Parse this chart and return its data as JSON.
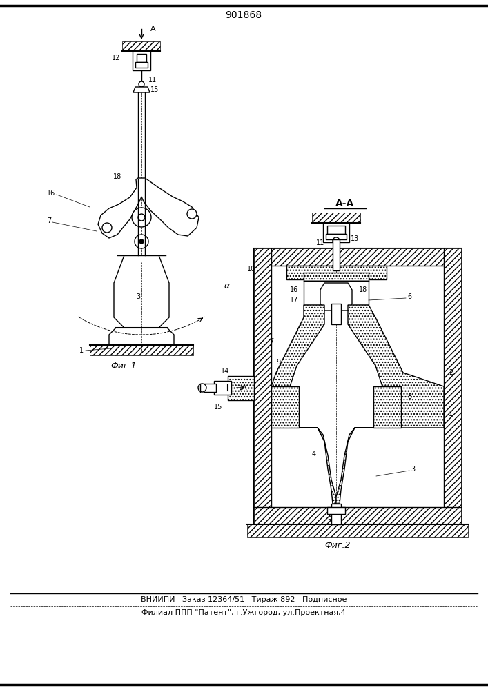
{
  "patent_number": "901868",
  "fig1_label": "Фиг.1",
  "fig2_label": "Фиг.2",
  "section_label": "А-А",
  "bottom_text1": "ВНИИПИ   Заказ 12364/51   Тираж 892   Подписное",
  "bottom_text2": "Филиал ППП \"Патент\", г.Ужгород, ул.Проектная,4",
  "bg_color": "#ffffff",
  "line_color": "#000000",
  "fig_width": 7.07,
  "fig_height": 10.0
}
